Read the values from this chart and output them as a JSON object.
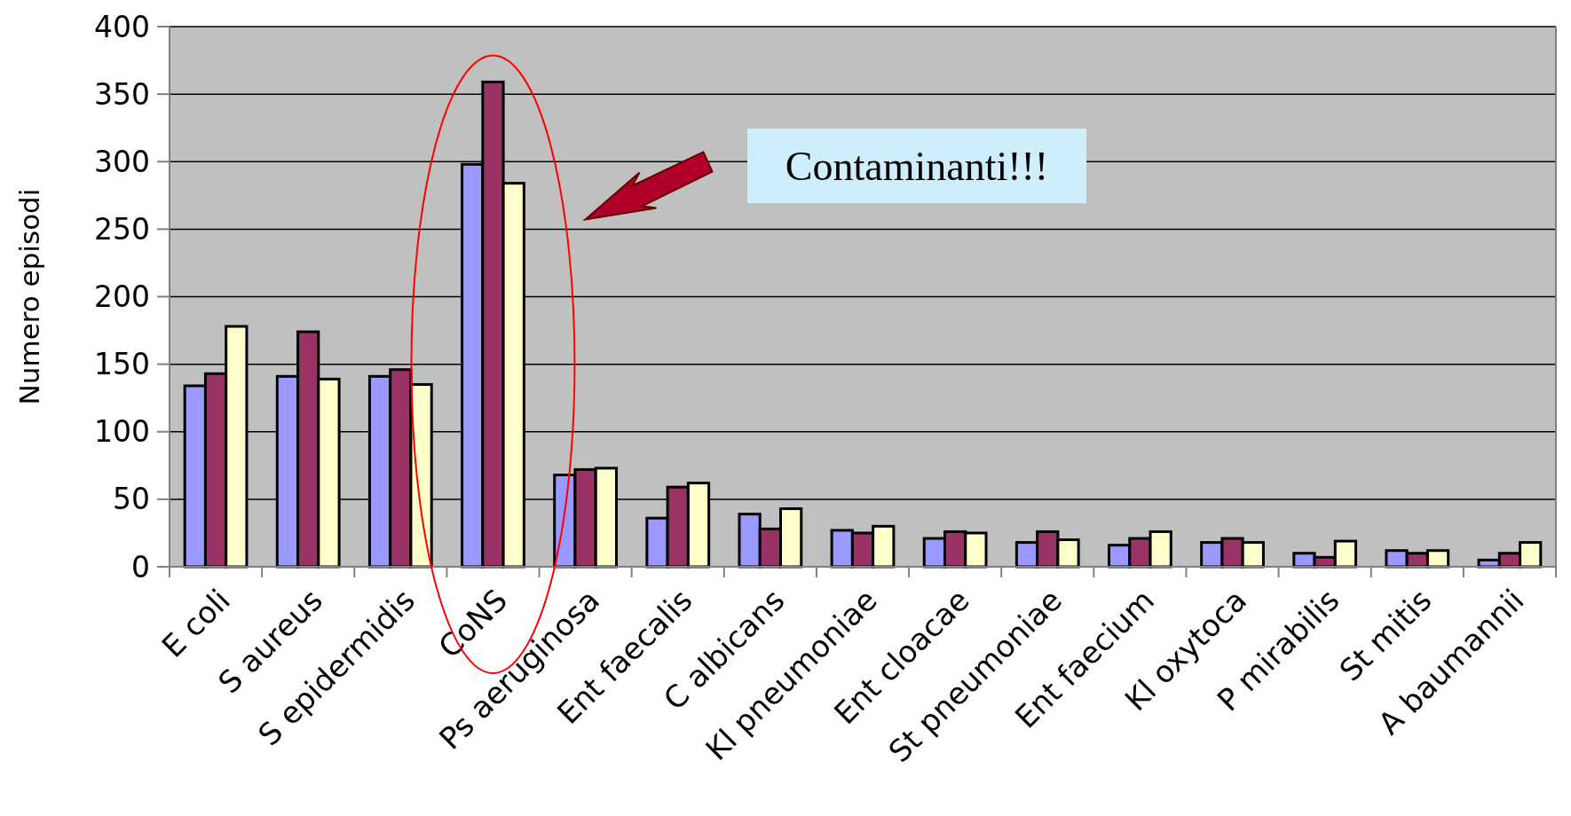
{
  "chart_data": {
    "type": "bar",
    "ylabel": "Numero episodi",
    "categories": [
      "E coli",
      "S aureus",
      "S epidermidis",
      "CoNS",
      "Ps aeruginosa",
      "Ent faecalis",
      "C albicans",
      "Kl pneumoniae",
      "Ent cloacae",
      "St pneumoniae",
      "Ent faecium",
      "Kl oxytoca",
      "P mirabilis",
      "St mitis",
      "A baumannii"
    ],
    "series": [
      {
        "color": "#9999ff",
        "values": [
          134,
          141,
          141,
          298,
          68,
          36,
          39,
          27,
          21,
          18,
          16,
          18,
          10,
          12,
          5
        ]
      },
      {
        "color": "#993366",
        "values": [
          143,
          174,
          146,
          359,
          72,
          59,
          28,
          25,
          26,
          26,
          21,
          21,
          7,
          10,
          10
        ]
      },
      {
        "color": "#ffffcc",
        "values": [
          178,
          139,
          135,
          284,
          73,
          62,
          43,
          30,
          25,
          20,
          26,
          18,
          19,
          12,
          18
        ]
      }
    ],
    "ylim": [
      0,
      400
    ],
    "yticks": [
      0,
      50,
      100,
      150,
      200,
      250,
      300,
      350,
      400
    ],
    "grid": "y",
    "annotations": [
      "Contaminanti!!!"
    ]
  }
}
